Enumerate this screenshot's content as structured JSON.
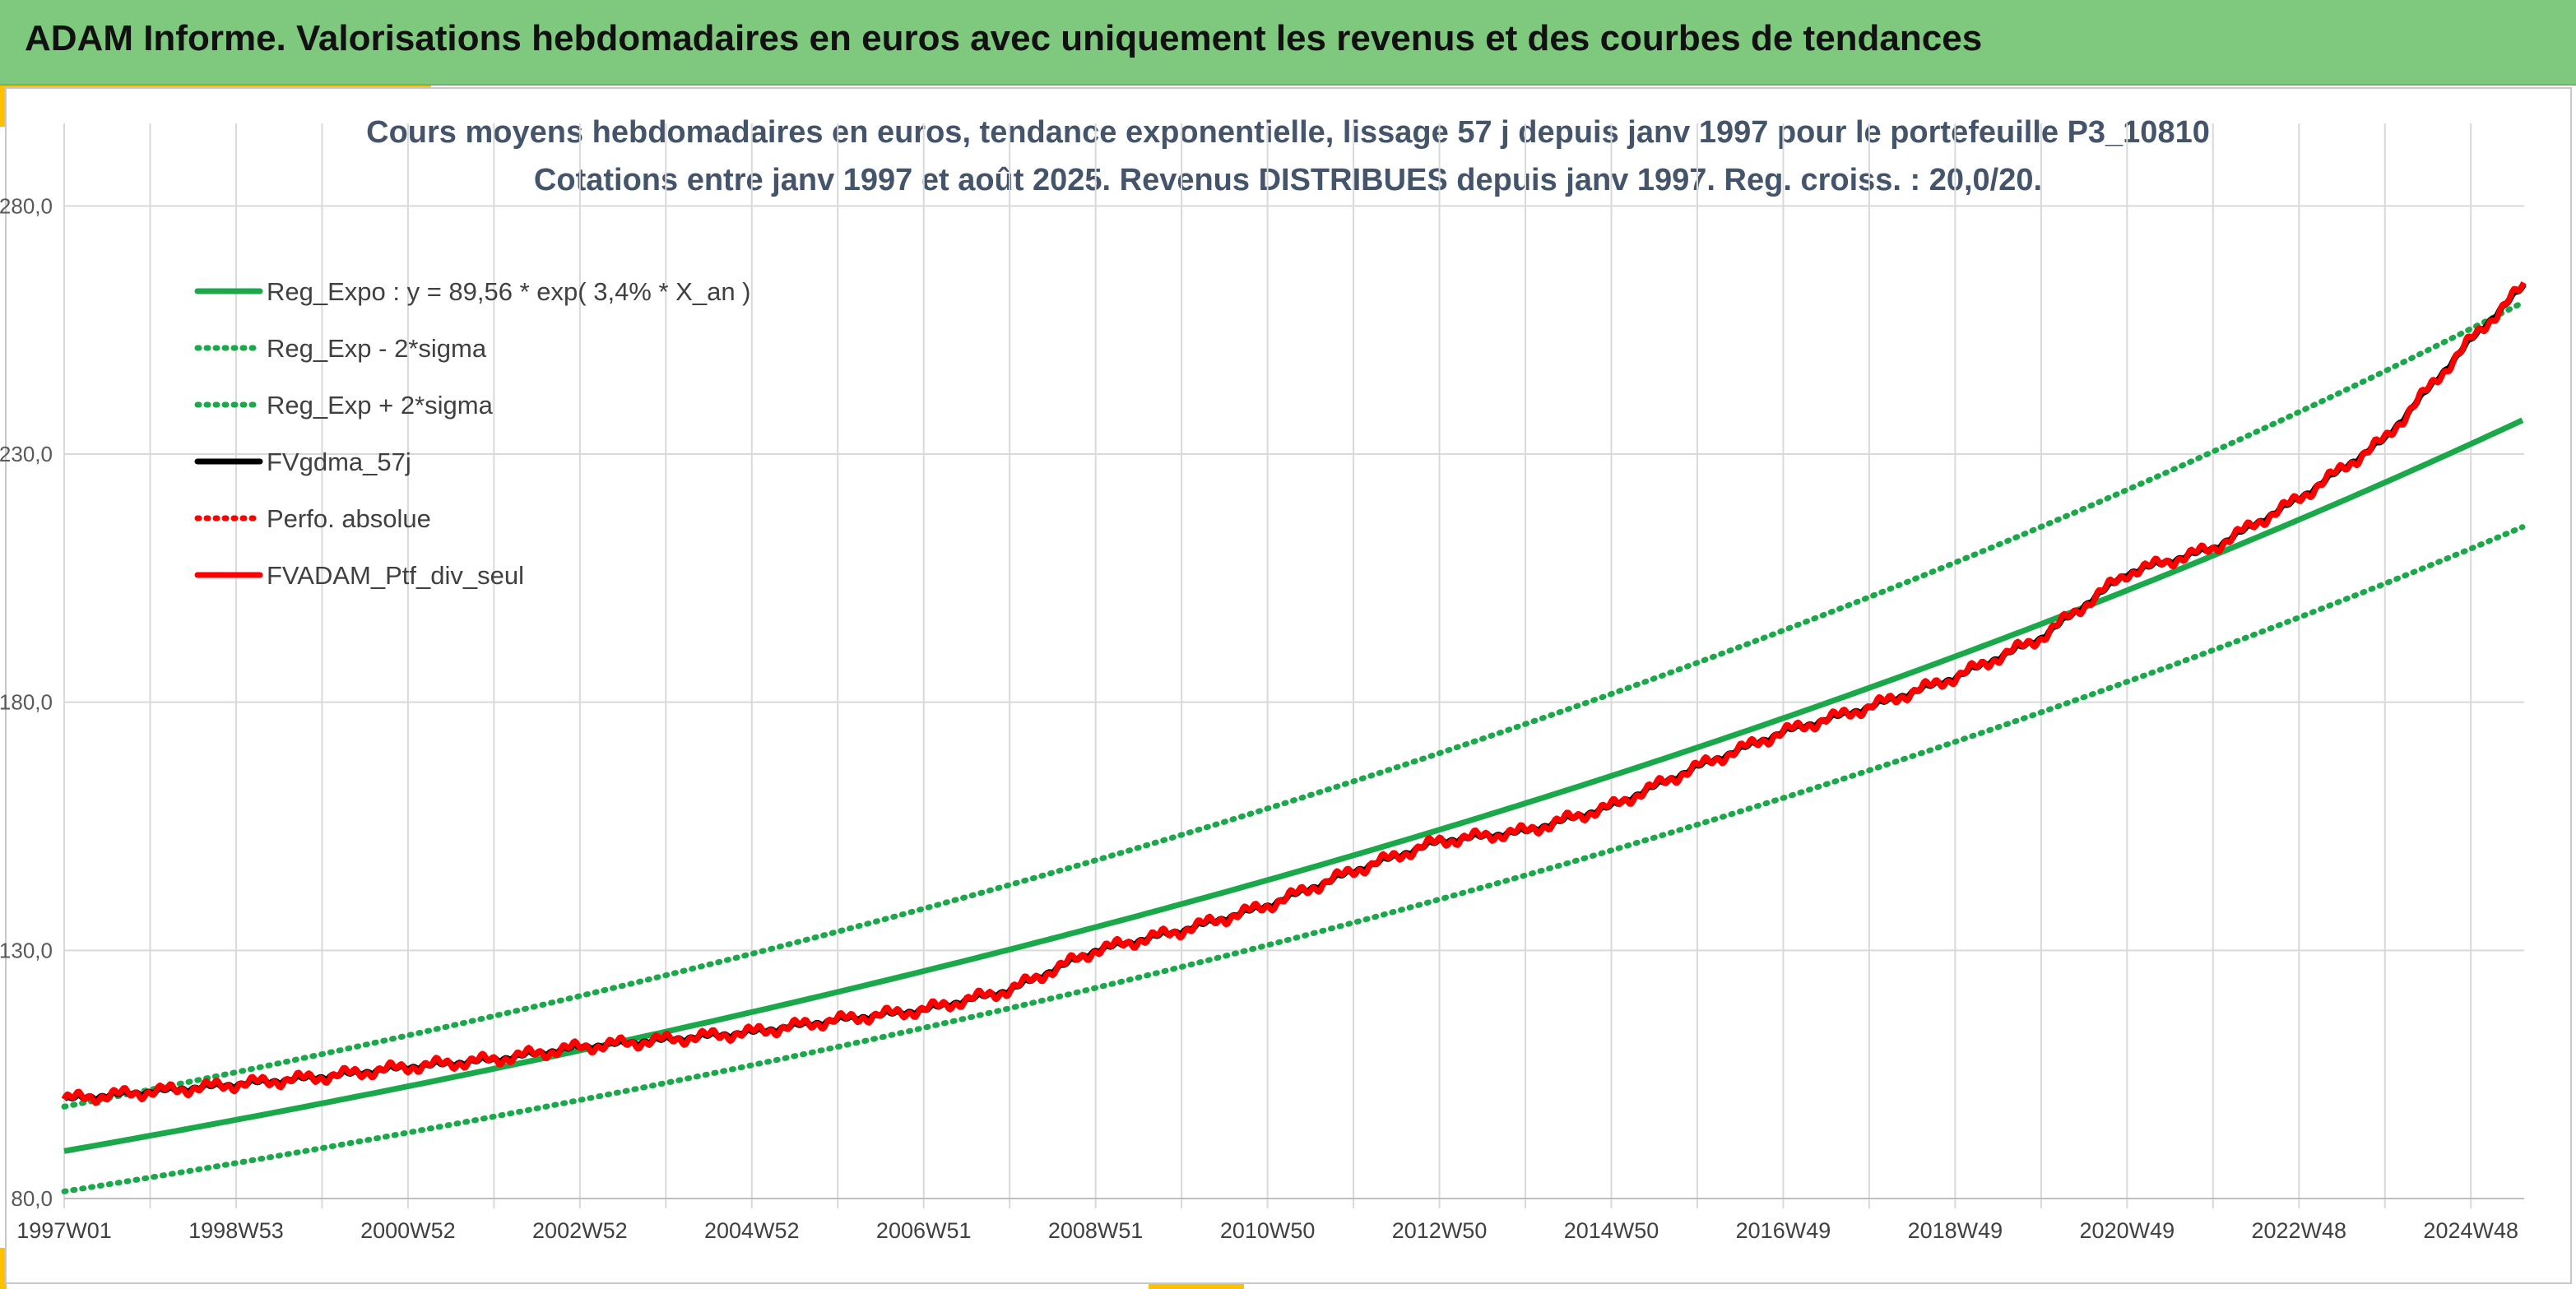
{
  "banner": {
    "title": "ADAM Informe. Valorisations hebdomadaires en euros avec uniquement les revenus et des courbes de tendances"
  },
  "colors": {
    "banner_bg": "#7fc97f",
    "accent_corner": "#ffc000",
    "reg_green": "#1aa84a",
    "fv_black": "#000000",
    "ptf_red": "#ff0000",
    "grid": "#d9d9d9",
    "title_text": "#44546a"
  },
  "chart_data": {
    "type": "line",
    "title": "Cours moyens hebdomadaires en euros, tendance exponentielle, lissage 57 j depuis janv 1997 pour le portefeuille P3_10810",
    "subtitle": "Cotations entre janv 1997 et août 2025. Revenus DISTRIBUES depuis janv 1997. Reg. croiss. : 20,0/20.",
    "xlabel": "",
    "ylabel": "",
    "x_range_years": [
      1997.0,
      2025.62
    ],
    "ylim": [
      80,
      290
    ],
    "y_ticks": [
      "80,0",
      "130,0",
      "180,0",
      "230,0",
      "280,0"
    ],
    "x_ticks": [
      {
        "label": "1997W01",
        "year": 1997.0
      },
      {
        "label": "1998W53",
        "year": 1999.0
      },
      {
        "label": "2000W52",
        "year": 2001.0
      },
      {
        "label": "2002W52",
        "year": 2003.0
      },
      {
        "label": "2004W52",
        "year": 2005.0
      },
      {
        "label": "2006W51",
        "year": 2007.0
      },
      {
        "label": "2008W51",
        "year": 2009.0
      },
      {
        "label": "2010W50",
        "year": 2011.0
      },
      {
        "label": "2012W50",
        "year": 2013.0
      },
      {
        "label": "2014W50",
        "year": 2015.0
      },
      {
        "label": "2016W49",
        "year": 2017.0
      },
      {
        "label": "2018W49",
        "year": 2019.0
      },
      {
        "label": "2020W49",
        "year": 2021.0
      },
      {
        "label": "2022W48",
        "year": 2023.0
      },
      {
        "label": "2024W48",
        "year": 2025.0
      }
    ],
    "grid": true,
    "legend_position": "top-left",
    "regression": {
      "a": 89.56,
      "rate": 0.034
    },
    "series": [
      {
        "name": "Reg_Expo : y = 89,56 * exp( 3,4% *  X_an )",
        "style": "solid",
        "color": "#1aa84a"
      },
      {
        "name": "Reg_Exp - 2*sigma",
        "style": "dotted",
        "color": "#1aa84a"
      },
      {
        "name": "Reg_Exp + 2*sigma",
        "style": "dotted",
        "color": "#1aa84a"
      },
      {
        "name": "FVgdma_57j",
        "style": "solid",
        "color": "#000000"
      },
      {
        "name": "Perfo. absolue",
        "style": "dotted",
        "color": "#ff0000"
      },
      {
        "name": "FVADAM_Ptf_div_seul",
        "style": "solid",
        "color": "#ff0000"
      }
    ],
    "band_factor": 1.1,
    "portfolio_points": [
      [
        1997.0,
        100.0
      ],
      [
        1998.0,
        101.5
      ],
      [
        1999.0,
        103.0
      ],
      [
        2000.0,
        104.5
      ],
      [
        2001.0,
        106.5
      ],
      [
        2002.0,
        108.0
      ],
      [
        2003.0,
        110.5
      ],
      [
        2004.0,
        112.0
      ],
      [
        2005.0,
        113.5
      ],
      [
        2006.0,
        116.0
      ],
      [
        2007.0,
        118.0
      ],
      [
        2008.0,
        122.0
      ],
      [
        2009.0,
        130.0
      ],
      [
        2010.0,
        134.0
      ],
      [
        2011.0,
        139.0
      ],
      [
        2012.0,
        146.0
      ],
      [
        2013.0,
        152.0
      ],
      [
        2014.0,
        154.0
      ],
      [
        2015.0,
        159.0
      ],
      [
        2016.0,
        167.0
      ],
      [
        2017.0,
        174.0
      ],
      [
        2018.0,
        179.0
      ],
      [
        2019.0,
        185.0
      ],
      [
        2020.0,
        193.0
      ],
      [
        2021.0,
        206.0
      ],
      [
        2022.0,
        211.0
      ],
      [
        2023.0,
        221.0
      ],
      [
        2024.0,
        233.0
      ],
      [
        2025.0,
        253.0
      ],
      [
        2025.62,
        264.0
      ]
    ]
  }
}
